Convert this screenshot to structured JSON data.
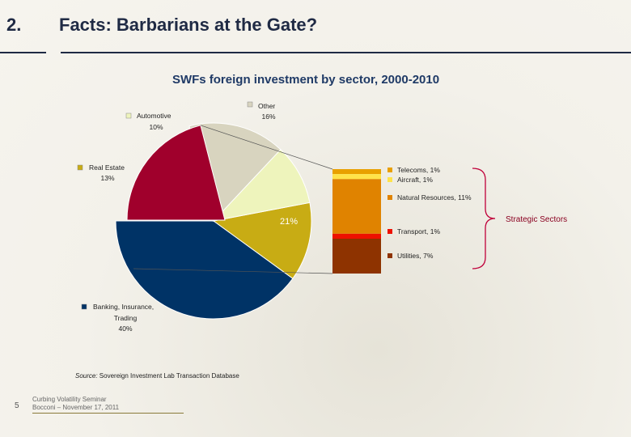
{
  "slide": {
    "number": "2.",
    "title": "Facts: Barbarians at the Gate?"
  },
  "source": {
    "prefix": "Source:",
    "text": " Sovereign Investment Lab Transaction Database"
  },
  "footer": {
    "page": "5",
    "line1": "Curbing Volatility Seminar",
    "line2": "Bocconi – November 17, 2011"
  },
  "chart_data": {
    "type": "pie",
    "title": "SWFs foreign investment by sector, 2000-2010",
    "slices": [
      {
        "label": "Banking, Insurance, Trading",
        "value": 40,
        "pct_label": "40%",
        "color": "#003366"
      },
      {
        "label": "Real Estate",
        "value": 13,
        "pct_label": "13%",
        "color": "#c8ac14"
      },
      {
        "label": "Automotive",
        "value": 10,
        "pct_label": "10%",
        "color": "#eef4bc"
      },
      {
        "label": "Other",
        "value": 16,
        "pct_label": "16%",
        "color": "#d8d4bf"
      },
      {
        "label": "",
        "value": 21,
        "pct_label": "21%",
        "color": "#a0002c"
      }
    ],
    "breakdown_label": "Strategic Sectors",
    "breakdown": [
      {
        "label": "Telecoms, 1%",
        "value": 1,
        "color": "#e8a000"
      },
      {
        "label": "Aircraft, 1%",
        "value": 1,
        "color": "#ffe34a"
      },
      {
        "label": "Natural Resources, 11%",
        "value": 11,
        "color": "#e08300"
      },
      {
        "label": "Transport, 1%",
        "value": 1,
        "color": "#ee1100"
      },
      {
        "label": "Utilities, 7%",
        "value": 7,
        "color": "#8e3300"
      }
    ]
  }
}
